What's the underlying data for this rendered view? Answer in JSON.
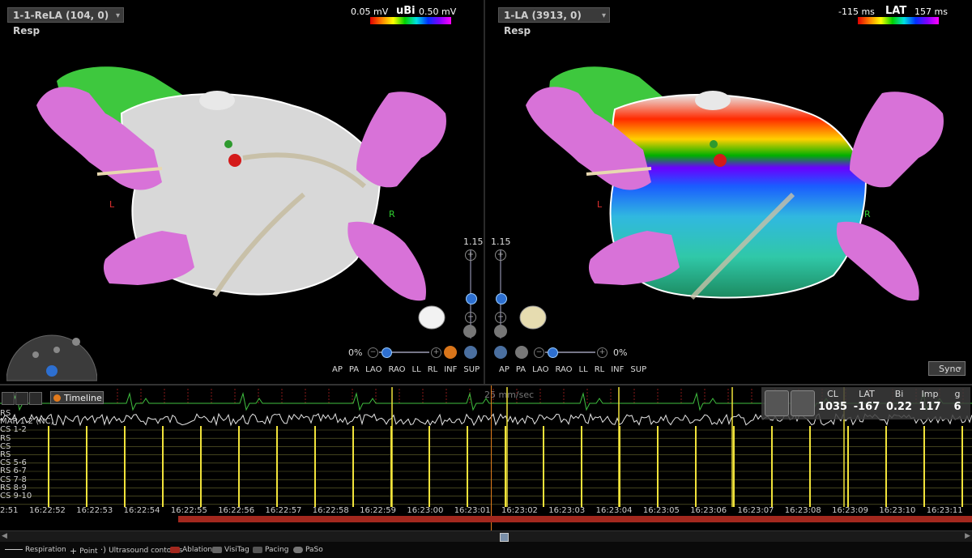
{
  "left_map": {
    "selector": "1-1-ReLA (104, 0) Resp",
    "scale": {
      "name": "uBi",
      "min": "0.05 mV",
      "max": "0.50 mV"
    },
    "zoom": "1.15",
    "percent": "0%",
    "view_buttons": [
      "AP",
      "PA",
      "LAO",
      "RAO",
      "LL",
      "RL",
      "INF",
      "SUP"
    ],
    "markers": {
      "left": "L",
      "right": "R"
    }
  },
  "right_map": {
    "selector": "1-LA (3913, 0) Resp",
    "scale": {
      "name": "LAT",
      "min": "-115 ms",
      "max": "157 ms"
    },
    "zoom": "1.15",
    "percent": "0%",
    "view_buttons": [
      "AP",
      "PA",
      "LAO",
      "RAO",
      "LL",
      "RL",
      "INF",
      "SUP"
    ],
    "markers": {
      "left": "L",
      "right": "R"
    },
    "sync": "Sync"
  },
  "strip": {
    "timeline_label": "Timeline",
    "speed": "25 mm/sec",
    "channels": [
      "RS",
      "MAP 1-2 (NC)",
      "CS 1-2",
      "RS",
      "CS",
      "RS",
      "CS 5-6",
      "RS 6-7",
      "CS 7-8",
      "RS 8-9",
      "CS 9-10"
    ],
    "params": [
      {
        "label": "CL",
        "value": "1035"
      },
      {
        "label": "LAT",
        "value": "-167"
      },
      {
        "label": "Bi",
        "value": "0.22"
      },
      {
        "label": "Imp",
        "value": "117"
      },
      {
        "label": "g",
        "value": "6"
      }
    ],
    "times": [
      "2:51",
      "16:22:52",
      "16:22:53",
      "16:22:54",
      "16:22:55",
      "16:22:56",
      "16:22:57",
      "16:22:58",
      "16:22:59",
      "16:23:00",
      "16:23:01",
      "16:23:02",
      "16:23:03",
      "16:23:04",
      "16:23:05",
      "16:23:06",
      "16:23:07",
      "16:23:08",
      "16:23:09",
      "16:23:10",
      "16:23:11"
    ]
  },
  "legend": [
    "Respiration",
    "Point",
    "Ultrasound contours",
    "Ablation",
    "VisiTag",
    "Pacing",
    "PaSo"
  ],
  "colors": {
    "ablation": "#a3281e",
    "timeline": "#e07b1c",
    "ecg_green": "#3fbf3f",
    "ecg_white": "#e6e6e6",
    "ecg_yellow": "#f0e23a"
  }
}
